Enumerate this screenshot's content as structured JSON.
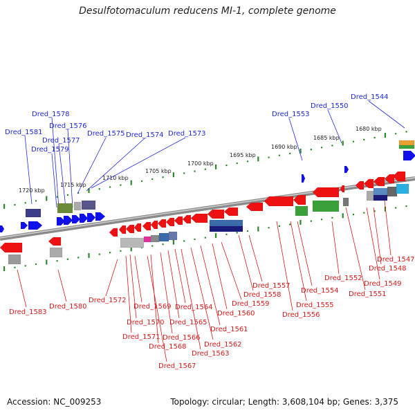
{
  "title": "Desulfotomaculum reducens MI-1, complete genome",
  "footer": {
    "accession": "Accession: NC_009253",
    "topology": "Topology: circular; Length: 3,608,104 bp; Genes: 3,375"
  },
  "colors": {
    "forward_gene": "#1010ee",
    "reverse_gene": "#ee1111",
    "forward_label": "#1f2ad6",
    "reverse_label": "#d41a1a",
    "ruler_tick": "#2a8a2a",
    "backbone": "#888888"
  },
  "scale_labels": [
    "1720 kbp",
    "1715 kbp",
    "1710 kbp",
    "1705 kbp",
    "1700 kbp",
    "1695 kbp",
    "1690 kbp",
    "1685 kbp",
    "1680 kbp"
  ],
  "forward_labels": [
    "Dred_1578",
    "Dred_1581",
    "Dred_1576",
    "Dred_1577",
    "Dred_1579",
    "Dred_1575",
    "Dred_1574",
    "Dred_1573",
    "Dred_1553",
    "Dred_1550",
    "Dred_1544"
  ],
  "reverse_labels": [
    "Dred_1583",
    "Dred_1580",
    "Dred_1572",
    "Dred_1569",
    "Dred_1570",
    "Dred_1571",
    "Dred_1566",
    "Dred_1568",
    "Dred_1567",
    "Dred_1565",
    "Dred_1564",
    "Dred_1562",
    "Dred_1563",
    "Dred_1561",
    "Dred_1560",
    "Dred_1559",
    "Dred_1558",
    "Dred_1557",
    "Dred_1556",
    "Dred_1555",
    "Dred_1554",
    "Dred_1552",
    "Dred_1551",
    "Dred_1549",
    "Dred_1548",
    "Dred_1547"
  ]
}
